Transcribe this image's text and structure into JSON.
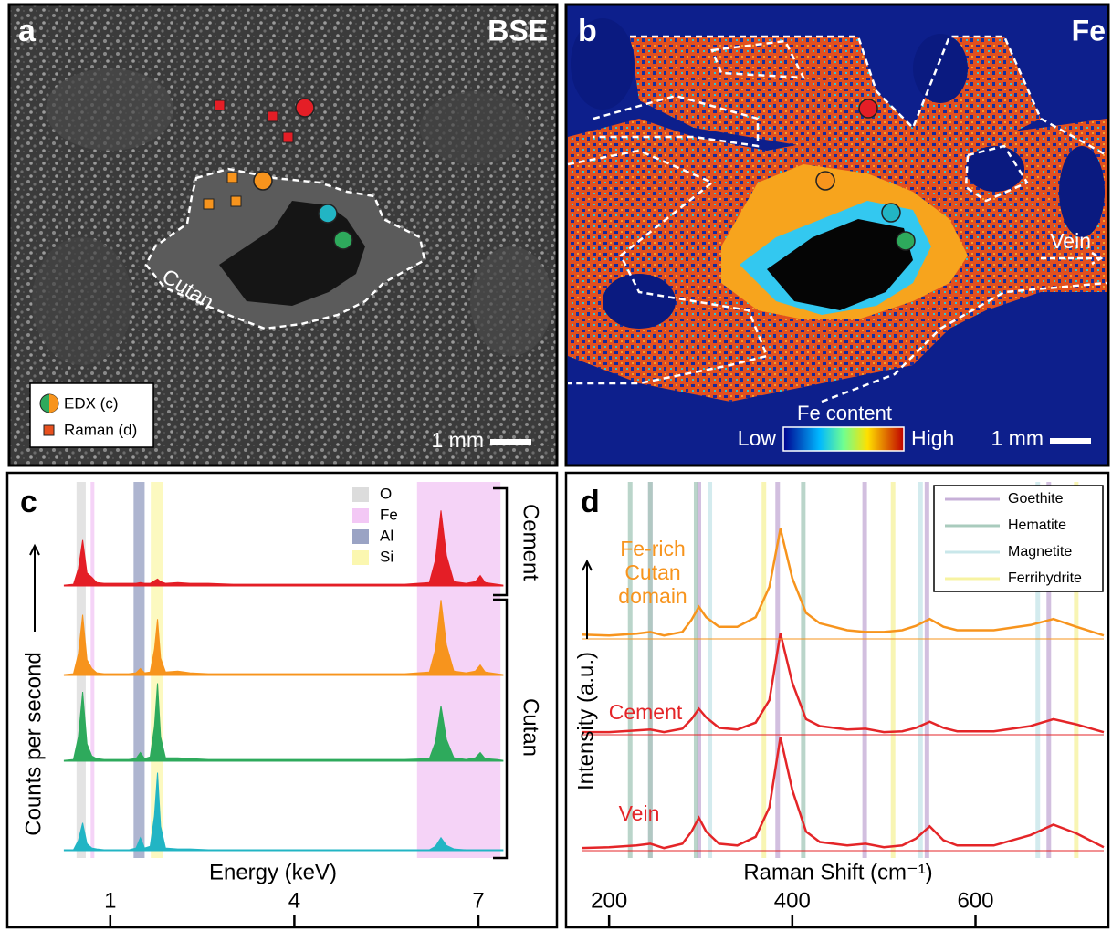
{
  "panel_a": {
    "label": "a",
    "title": "BSE",
    "region_label": "Cutan",
    "legend": [
      "EDX (c)",
      "Raman (d)"
    ],
    "scale_bar": "1 mm"
  },
  "panel_b": {
    "label": "b",
    "title": "Fe",
    "arrow_label": "Vein",
    "colorbar_title": "Fe content",
    "colorbar_low": "Low",
    "colorbar_high": "High",
    "scale_bar": "1 mm"
  },
  "chart_data": [
    {
      "type": "area",
      "panel_label": "c",
      "x_label": "Energy (keV)",
      "y_label": "Counts per second",
      "xlim": [
        -0.5,
        8.25
      ],
      "xticks": [
        1,
        4,
        7
      ],
      "ylim": [
        0,
        100
      ],
      "bands": [
        {
          "name": "O",
          "color": "#dcdcdc",
          "ranges": [
            [
              0.45,
              0.6
            ]
          ]
        },
        {
          "name": "Fe",
          "color": "#f3c8f5",
          "ranges": [
            [
              0.68,
              0.74
            ],
            [
              6.0,
              7.36
            ]
          ]
        },
        {
          "name": "Al",
          "color": "#9aa3c4",
          "ranges": [
            [
              1.38,
              1.56
            ]
          ]
        },
        {
          "name": "Si",
          "color": "#fbf7b0",
          "ranges": [
            [
              1.66,
              1.86
            ]
          ]
        }
      ],
      "brackets": [
        "Cement",
        "Cutan"
      ],
      "x": [
        0.25,
        0.4,
        0.48,
        0.55,
        0.62,
        0.7,
        0.78,
        0.9,
        1.1,
        1.3,
        1.42,
        1.49,
        1.56,
        1.65,
        1.72,
        1.77,
        1.82,
        1.9,
        2.1,
        2.3,
        2.6,
        3.0,
        4.0,
        5.0,
        5.8,
        6.2,
        6.3,
        6.39,
        6.48,
        6.6,
        6.8,
        6.95,
        7.03,
        7.11,
        7.3,
        7.4
      ],
      "series": [
        {
          "color": "#e41e26",
          "values": [
            1,
            2,
            20,
            53,
            15,
            10,
            4,
            3,
            3,
            3,
            3,
            4,
            3,
            3,
            6,
            8,
            5,
            3,
            4,
            3,
            3,
            2,
            2,
            2,
            2,
            4,
            30,
            87,
            35,
            5,
            3,
            5,
            12,
            4,
            2,
            1
          ]
        },
        {
          "color": "#f7941d",
          "values": [
            1,
            2,
            25,
            70,
            18,
            8,
            3,
            2,
            2,
            2,
            3,
            8,
            3,
            4,
            30,
            65,
            20,
            4,
            5,
            3,
            2,
            2,
            2,
            2,
            2,
            4,
            30,
            87,
            35,
            5,
            3,
            5,
            12,
            4,
            2,
            1
          ]
        },
        {
          "color": "#2eaa5c",
          "values": [
            1,
            2,
            28,
            80,
            20,
            6,
            3,
            2,
            2,
            2,
            3,
            10,
            3,
            5,
            40,
            90,
            28,
            4,
            4,
            3,
            2,
            2,
            2,
            2,
            2,
            3,
            22,
            64,
            25,
            4,
            2,
            4,
            10,
            3,
            2,
            1
          ]
        },
        {
          "color": "#22b5c4",
          "values": [
            1,
            1,
            12,
            32,
            8,
            3,
            2,
            1,
            1,
            1,
            3,
            15,
            3,
            5,
            40,
            90,
            28,
            3,
            2,
            2,
            1,
            1,
            1,
            1,
            1,
            1,
            5,
            15,
            6,
            2,
            1,
            1,
            1,
            1,
            1,
            1
          ]
        }
      ]
    },
    {
      "type": "line",
      "panel_label": "d",
      "x_label": "Raman Shift (cm⁻¹)",
      "y_label": "Intensity (a.u.)",
      "xlim": [
        155,
        745
      ],
      "xticks": [
        200,
        400,
        600
      ],
      "ylim": [
        0,
        140
      ],
      "reference_bands": [
        {
          "name": "Goethite",
          "color": "#c7b0d8",
          "positions": [
            245,
            298,
            384,
            479,
            547,
            680
          ]
        },
        {
          "name": "Hematite",
          "color": "#a9cbbd",
          "positions": [
            223,
            245,
            295,
            412
          ]
        },
        {
          "name": "Magnetite",
          "color": "#c9e7ea",
          "positions": [
            310,
            540,
            668
          ]
        },
        {
          "name": "Ferrihydrite",
          "color": "#f7f3a2",
          "positions": [
            369,
            510,
            710
          ]
        }
      ],
      "x": [
        170,
        200,
        230,
        245,
        260,
        280,
        290,
        298,
        306,
        320,
        340,
        360,
        375,
        387,
        400,
        415,
        430,
        460,
        480,
        500,
        520,
        535,
        550,
        565,
        580,
        620,
        660,
        685,
        710,
        740
      ],
      "series": [
        {
          "name": "Fe-rich Cutan domain",
          "color": "#f7941d",
          "values": [
            5,
            4,
            6,
            8,
            4,
            8,
            22,
            37,
            25,
            14,
            14,
            25,
            60,
            127,
            70,
            30,
            18,
            10,
            8,
            8,
            10,
            15,
            23,
            14,
            10,
            10,
            16,
            23,
            14,
            4
          ]
        },
        {
          "name": "Cement",
          "color": "#e42528",
          "values": [
            3,
            3,
            5,
            6,
            3,
            7,
            18,
            30,
            20,
            8,
            6,
            14,
            40,
            117,
            60,
            18,
            10,
            6,
            7,
            3,
            4,
            8,
            15,
            8,
            4,
            4,
            10,
            18,
            12,
            3
          ]
        },
        {
          "name": "Vein",
          "color": "#e42528",
          "values": [
            3,
            4,
            6,
            8,
            3,
            8,
            22,
            38,
            22,
            8,
            6,
            16,
            50,
            131,
            70,
            22,
            10,
            6,
            8,
            4,
            6,
            14,
            28,
            12,
            6,
            6,
            18,
            30,
            20,
            4
          ]
        }
      ]
    }
  ]
}
